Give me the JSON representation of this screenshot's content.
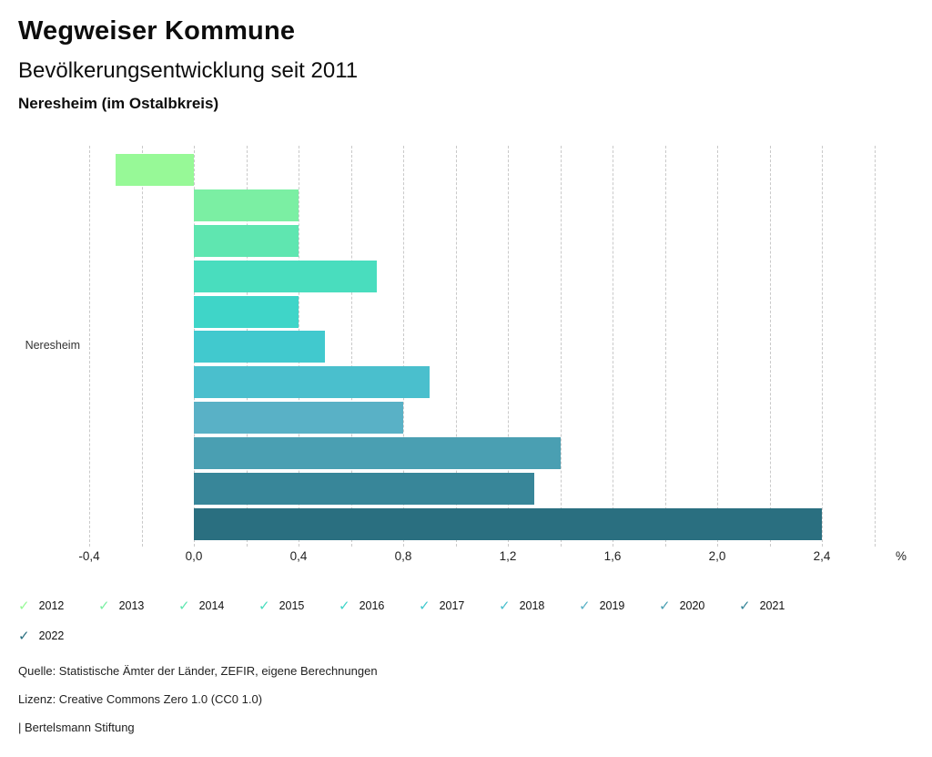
{
  "header": {
    "title": "Wegweiser Kommune",
    "subtitle": "Bevölkerungsentwicklung seit 2011",
    "location": "Neresheim (im Ostalbkreis)"
  },
  "chart_data": {
    "type": "bar",
    "orientation": "horizontal",
    "title": "Bevölkerungsentwicklung seit 2011",
    "row_label": "Neresheim",
    "categories": [
      "2012",
      "2013",
      "2014",
      "2015",
      "2016",
      "2017",
      "2018",
      "2019",
      "2020",
      "2021",
      "2022"
    ],
    "values": [
      -0.3,
      0.4,
      0.4,
      0.7,
      0.4,
      0.5,
      0.9,
      0.8,
      1.4,
      1.3,
      2.4
    ],
    "colors": [
      "#97F997",
      "#7BEFA3",
      "#5FE6B0",
      "#49DDBE",
      "#3FD5C8",
      "#41C9CE",
      "#4ABFCD",
      "#59B1C6",
      "#4A9FB2",
      "#388699",
      "#2A6F80"
    ],
    "xlim": [
      -0.4,
      2.6
    ],
    "grid_step": 0.2,
    "grid": true,
    "tick_values": [
      -0.4,
      0.0,
      0.4,
      0.8,
      1.2,
      1.6,
      2.0,
      2.4
    ],
    "tick_labels": [
      "-0,4",
      "0,0",
      "0,4",
      "0,8",
      "1,2",
      "1,6",
      "2,0",
      "2,4"
    ],
    "unit_label": "%",
    "legend_position": "bottom"
  },
  "footer": {
    "source": "Quelle: Statistische Ämter der Länder, ZEFIR, eigene Berechnungen",
    "license": "Lizenz: Creative Commons Zero 1.0 (CC0 1.0)",
    "attribution": "| Bertelsmann Stiftung"
  }
}
